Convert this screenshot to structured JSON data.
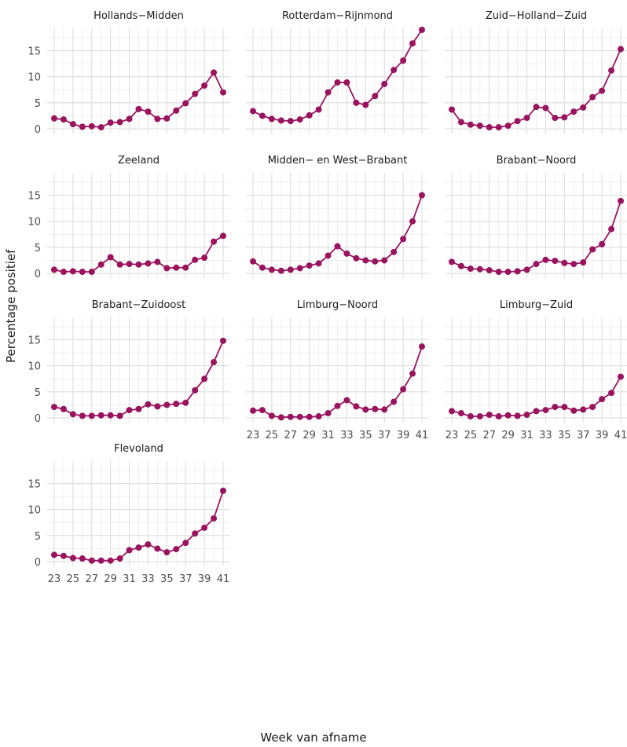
{
  "chart_data": {
    "type": "line",
    "xlabel": "Week van afname",
    "ylabel": "Percentage positief",
    "x": [
      23,
      24,
      25,
      26,
      27,
      28,
      29,
      30,
      31,
      32,
      33,
      34,
      35,
      36,
      37,
      38,
      39,
      40,
      41
    ],
    "x_ticks": [
      "23",
      "25",
      "27",
      "29",
      "31",
      "33",
      "35",
      "37",
      "39",
      "41"
    ],
    "y_ticks": [
      "0",
      "5",
      "10",
      "15"
    ],
    "ylim": [
      -0.9,
      19.3
    ],
    "grid": true,
    "color": "#99135f",
    "panels": [
      {
        "title": "Hollands−Midden",
        "values": [
          2.0,
          1.8,
          0.9,
          0.4,
          0.5,
          0.3,
          1.2,
          1.3,
          1.9,
          3.8,
          3.3,
          1.9,
          2.0,
          3.5,
          4.9,
          6.7,
          8.3,
          10.8,
          7.0
        ]
      },
      {
        "title": "Rotterdam−Rijnmond",
        "values": [
          3.4,
          2.5,
          1.9,
          1.6,
          1.5,
          1.8,
          2.6,
          3.7,
          7.0,
          8.9,
          8.9,
          5.0,
          4.6,
          6.3,
          8.6,
          11.3,
          13.1,
          16.4,
          19.0
        ]
      },
      {
        "title": "Zuid−Holland−Zuid",
        "values": [
          3.7,
          1.3,
          0.8,
          0.6,
          0.3,
          0.3,
          0.6,
          1.5,
          2.1,
          4.2,
          4.0,
          2.1,
          2.2,
          3.3,
          4.1,
          6.1,
          7.3,
          11.2,
          15.3
        ]
      },
      {
        "title": "Zeeland",
        "values": [
          0.7,
          0.3,
          0.4,
          0.3,
          0.3,
          1.7,
          3.1,
          1.7,
          1.8,
          1.7,
          1.9,
          2.2,
          1.0,
          1.1,
          1.1,
          2.6,
          3.0,
          6.1,
          7.2
        ]
      },
      {
        "title": "Midden− en West−Brabant",
        "values": [
          2.3,
          1.1,
          0.7,
          0.5,
          0.7,
          1.0,
          1.5,
          1.9,
          3.4,
          5.2,
          3.8,
          2.9,
          2.5,
          2.3,
          2.5,
          4.1,
          6.6,
          10.0,
          15.0
        ]
      },
      {
        "title": "Brabant−Noord",
        "values": [
          2.2,
          1.4,
          0.9,
          0.8,
          0.6,
          0.3,
          0.3,
          0.4,
          0.7,
          1.8,
          2.6,
          2.4,
          2.0,
          1.8,
          2.1,
          4.6,
          5.6,
          8.5,
          13.9
        ]
      },
      {
        "title": "Brabant−Zuidoost",
        "values": [
          2.1,
          1.7,
          0.7,
          0.4,
          0.4,
          0.5,
          0.5,
          0.4,
          1.5,
          1.7,
          2.6,
          2.2,
          2.5,
          2.7,
          2.9,
          5.3,
          7.5,
          10.7,
          14.8
        ]
      },
      {
        "title": "Limburg−Noord",
        "values": [
          1.4,
          1.5,
          0.4,
          0.1,
          0.2,
          0.2,
          0.2,
          0.3,
          0.9,
          2.3,
          3.4,
          2.2,
          1.6,
          1.7,
          1.6,
          3.1,
          5.5,
          8.5,
          13.7
        ]
      },
      {
        "title": "Limburg−Zuid",
        "values": [
          1.3,
          0.9,
          0.3,
          0.3,
          0.6,
          0.3,
          0.5,
          0.4,
          0.6,
          1.3,
          1.5,
          2.1,
          2.1,
          1.4,
          1.6,
          2.1,
          3.6,
          4.8,
          7.9
        ]
      },
      {
        "title": "Flevoland",
        "values": [
          1.3,
          1.1,
          0.7,
          0.6,
          0.2,
          0.2,
          0.2,
          0.6,
          2.2,
          2.7,
          3.3,
          2.5,
          1.8,
          2.4,
          3.6,
          5.4,
          6.5,
          8.3,
          13.6
        ]
      }
    ]
  }
}
